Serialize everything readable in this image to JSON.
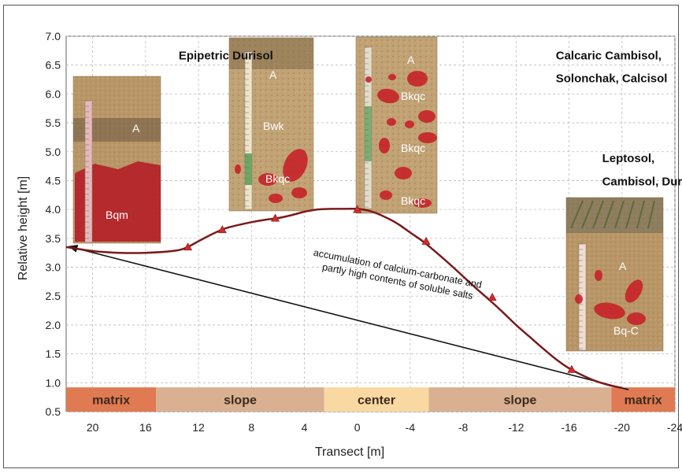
{
  "chart_data": {
    "type": "line",
    "xlabel": "Transect [m]",
    "ylabel": "Relative height [m]",
    "xlim": [
      22,
      -24
    ],
    "ylim": [
      0.5,
      7.0
    ],
    "x_ticks": [
      20,
      16,
      12,
      8,
      4,
      0,
      -4,
      -8,
      -12,
      -16,
      -20,
      -24
    ],
    "y_ticks": [
      0.5,
      1.0,
      1.5,
      2.0,
      2.5,
      3.0,
      3.5,
      4.0,
      4.5,
      5.0,
      5.5,
      6.0,
      6.5,
      7.0
    ],
    "grid": true,
    "series": [
      {
        "color": "#7a1a1a",
        "marker": "triangle",
        "marker_color": "#d42a2a",
        "curve": [
          [
            22,
            3.35
          ],
          [
            20,
            3.28
          ],
          [
            18,
            3.25
          ],
          [
            16,
            3.25
          ],
          [
            14,
            3.28
          ],
          [
            13,
            3.33
          ],
          [
            12,
            3.45
          ],
          [
            11,
            3.57
          ],
          [
            10,
            3.67
          ],
          [
            9,
            3.73
          ],
          [
            8,
            3.78
          ],
          [
            7,
            3.82
          ],
          [
            6,
            3.85
          ],
          [
            5,
            3.9
          ],
          [
            4,
            3.96
          ],
          [
            3,
            4.0
          ],
          [
            2,
            4.01
          ],
          [
            1,
            4.01
          ],
          [
            0,
            4.01
          ],
          [
            -1,
            3.97
          ],
          [
            -2,
            3.88
          ],
          [
            -3,
            3.76
          ],
          [
            -4,
            3.6
          ],
          [
            -5,
            3.44
          ],
          [
            -6,
            3.25
          ],
          [
            -7,
            3.05
          ],
          [
            -8,
            2.84
          ],
          [
            -9,
            2.63
          ],
          [
            -10,
            2.43
          ],
          [
            -11,
            2.22
          ],
          [
            -12,
            2.0
          ],
          [
            -13,
            1.8
          ],
          [
            -14,
            1.6
          ],
          [
            -15,
            1.41
          ],
          [
            -16,
            1.25
          ],
          [
            -17,
            1.13
          ],
          [
            -18,
            1.03
          ],
          [
            -19,
            0.96
          ],
          [
            -20,
            0.91
          ]
        ],
        "markers": [
          [
            12.8,
            3.35
          ],
          [
            10.2,
            3.65
          ],
          [
            6.2,
            3.85
          ],
          [
            0,
            4.0
          ],
          [
            -5.2,
            3.45
          ],
          [
            -10.2,
            2.48
          ],
          [
            -16.2,
            1.23
          ]
        ]
      }
    ],
    "annotations": [
      {
        "text": "accumulation of calcium-carbonate and",
        "x": -3.0,
        "y": 2.92,
        "rotation": 11
      },
      {
        "text": "partly high contents of soluble salts",
        "x": -3.0,
        "y": 2.7,
        "rotation": 11
      },
      {
        "text": "Epipetric Durisol",
        "x": 13.5,
        "y": 6.6
      },
      {
        "text": "Calcaric Cambisol,",
        "x": -15.0,
        "y": 6.6
      },
      {
        "text": "Solonchak, Calcisol",
        "x": -15.0,
        "y": 6.2
      },
      {
        "text": "Leptosol,",
        "x": -18.5,
        "y": 4.82
      },
      {
        "text": "Cambisol, Durisol",
        "x": -18.5,
        "y": 4.42
      }
    ],
    "arrow": {
      "from": [
        -20.5,
        0.88
      ],
      "to": [
        21.8,
        3.36
      ]
    },
    "zones": [
      {
        "label": "matrix",
        "from": 22,
        "to": 15.2,
        "color": "#e07a52"
      },
      {
        "label": "slope",
        "from": 15.2,
        "to": 2.5,
        "color": "#d9b092"
      },
      {
        "label": "center",
        "from": 2.5,
        "to": -5.4,
        "color": "#f9d9a1"
      },
      {
        "label": "slope",
        "from": -5.4,
        "to": -19.2,
        "color": "#d9b092"
      },
      {
        "label": "matrix",
        "from": -19.2,
        "to": -24,
        "color": "#e07a52"
      }
    ],
    "profiles": [
      {
        "name": "Epipetric Durisol profile",
        "horizons": [
          "A",
          "Bqm"
        ]
      },
      {
        "name": "slope profile",
        "horizons": [
          "A",
          "Bwk",
          "Bkqc"
        ]
      },
      {
        "name": "center profile",
        "horizons": [
          "A",
          "Bkqc",
          "Bkqc",
          "Bkqc"
        ]
      },
      {
        "name": "Leptosol profile",
        "horizons": [
          "A",
          "Bq-C"
        ]
      }
    ]
  }
}
